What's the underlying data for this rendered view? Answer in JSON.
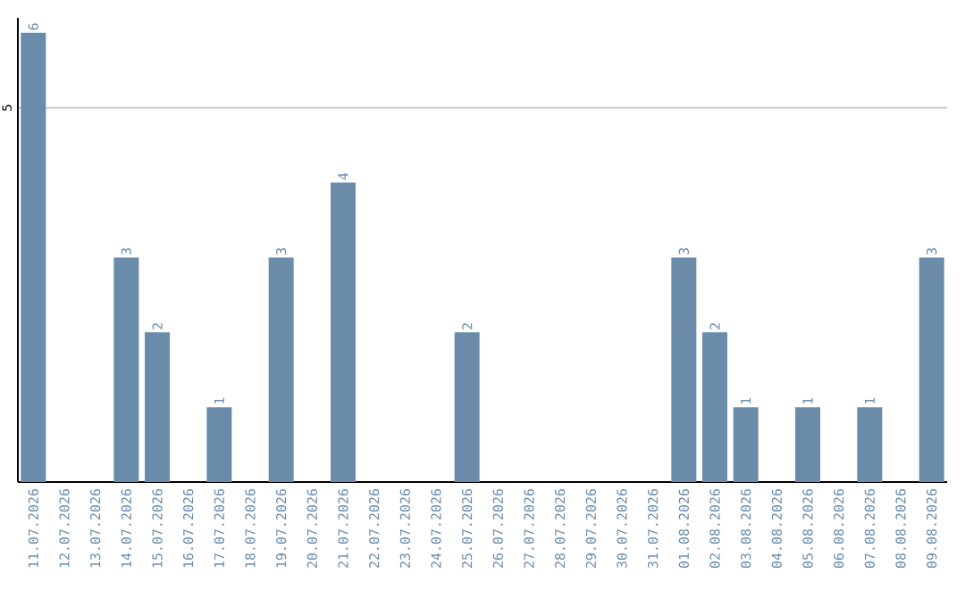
{
  "chart_data": {
    "type": "bar",
    "categories": [
      "11.07.2026",
      "12.07.2026",
      "13.07.2026",
      "14.07.2026",
      "15.07.2026",
      "16.07.2026",
      "17.07.2026",
      "18.07.2026",
      "19.07.2026",
      "20.07.2026",
      "21.07.2026",
      "22.07.2026",
      "23.07.2026",
      "24.07.2026",
      "25.07.2026",
      "26.07.2026",
      "27.07.2026",
      "28.07.2026",
      "29.07.2026",
      "30.07.2026",
      "31.07.2026",
      "01.08.2026",
      "02.08.2026",
      "03.08.2026",
      "04.08.2026",
      "05.08.2026",
      "06.08.2026",
      "07.08.2026",
      "08.08.2026",
      "09.08.2026"
    ],
    "values": [
      6,
      0,
      0,
      3,
      2,
      0,
      1,
      0,
      3,
      0,
      4,
      0,
      0,
      0,
      2,
      0,
      0,
      0,
      0,
      0,
      0,
      3,
      2,
      1,
      0,
      1,
      0,
      1,
      0,
      3
    ],
    "value_labels": [
      "6",
      null,
      null,
      "3",
      "2",
      null,
      "1",
      null,
      "3",
      null,
      "4",
      null,
      null,
      null,
      "2",
      null,
      null,
      null,
      null,
      null,
      null,
      "3",
      "2",
      "1",
      null,
      "1",
      null,
      "1",
      null,
      "3"
    ],
    "color": "#6a8caa",
    "ylim": [
      0,
      6.2
    ],
    "yticks": [
      5
    ],
    "grid": "y"
  }
}
